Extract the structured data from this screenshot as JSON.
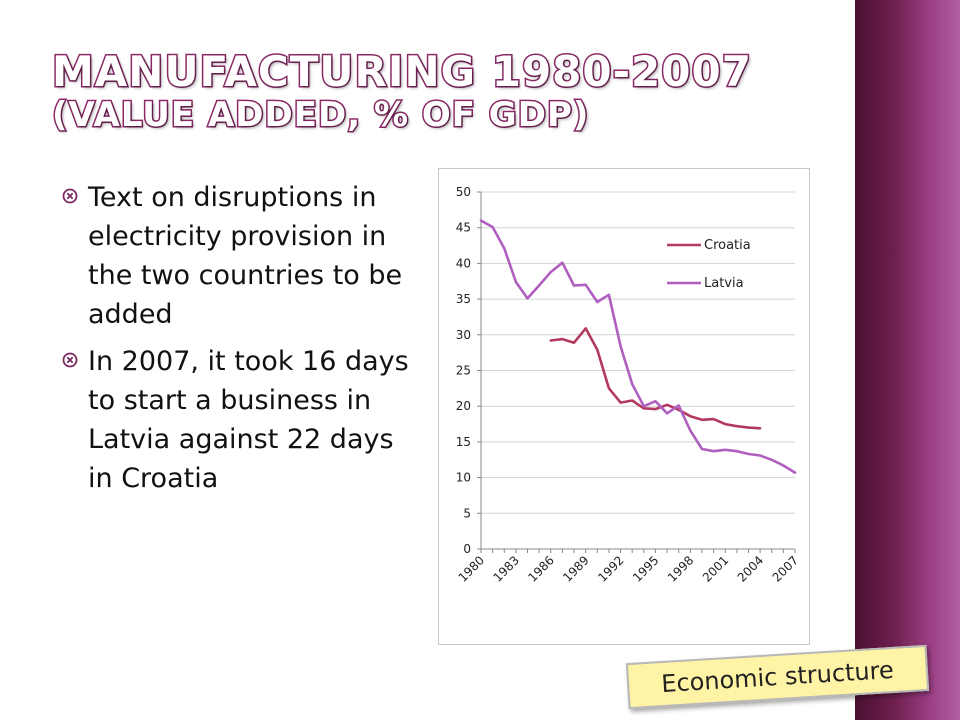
{
  "slide": {
    "title_line1": "Manufacturing 1980-2007",
    "title_line2": "(value added, % of GDP)",
    "bullets": [
      "Text on disruptions in electricity provision in the two countries to be added",
      "In 2007, it took 16 days to start a business in Latvia against 22 days in Croatia"
    ],
    "tag": "Economic structure",
    "colors": {
      "title_outline": "#8b2a67",
      "sidebar": "#6b1e4c",
      "tag_bg": "#fff4a6"
    }
  },
  "chart_data": {
    "type": "line",
    "title": "",
    "xlabel": "",
    "ylabel": "",
    "ylim": [
      0,
      50
    ],
    "yticks": [
      "0",
      "5",
      "10",
      "15",
      "20",
      "25",
      "30",
      "35",
      "40",
      "45",
      "50"
    ],
    "xticks": [
      "1980",
      "1983",
      "1986",
      "1989",
      "1992",
      "1995",
      "1998",
      "2001",
      "2004",
      "2007"
    ],
    "x": [
      1980,
      1981,
      1982,
      1983,
      1984,
      1985,
      1986,
      1987,
      1988,
      1989,
      1990,
      1991,
      1992,
      1993,
      1994,
      1995,
      1996,
      1997,
      1998,
      1999,
      2000,
      2001,
      2002,
      2003,
      2004,
      2005,
      2006,
      2007
    ],
    "legend": "right",
    "grid": "horizontal",
    "series": [
      {
        "name": "Croatia",
        "color": "#b23a5c",
        "values": [
          null,
          null,
          null,
          null,
          null,
          null,
          29.2,
          29.4,
          28.9,
          30.9,
          27.9,
          22.5,
          20.5,
          20.8,
          19.7,
          19.6,
          20.2,
          19.5,
          18.6,
          18.1,
          18.2,
          17.5,
          17.2,
          17.0,
          16.9,
          null,
          null,
          null
        ]
      },
      {
        "name": "Latvia",
        "color": "#b05fc0",
        "values": [
          46.0,
          45.1,
          42.1,
          37.4,
          35.1,
          36.9,
          38.8,
          40.1,
          36.9,
          37.0,
          34.6,
          35.6,
          28.4,
          23.1,
          20.0,
          20.7,
          19.0,
          20.1,
          16.6,
          14.0,
          13.7,
          13.9,
          13.7,
          13.3,
          13.1,
          12.5,
          11.7,
          10.7
        ]
      }
    ]
  }
}
